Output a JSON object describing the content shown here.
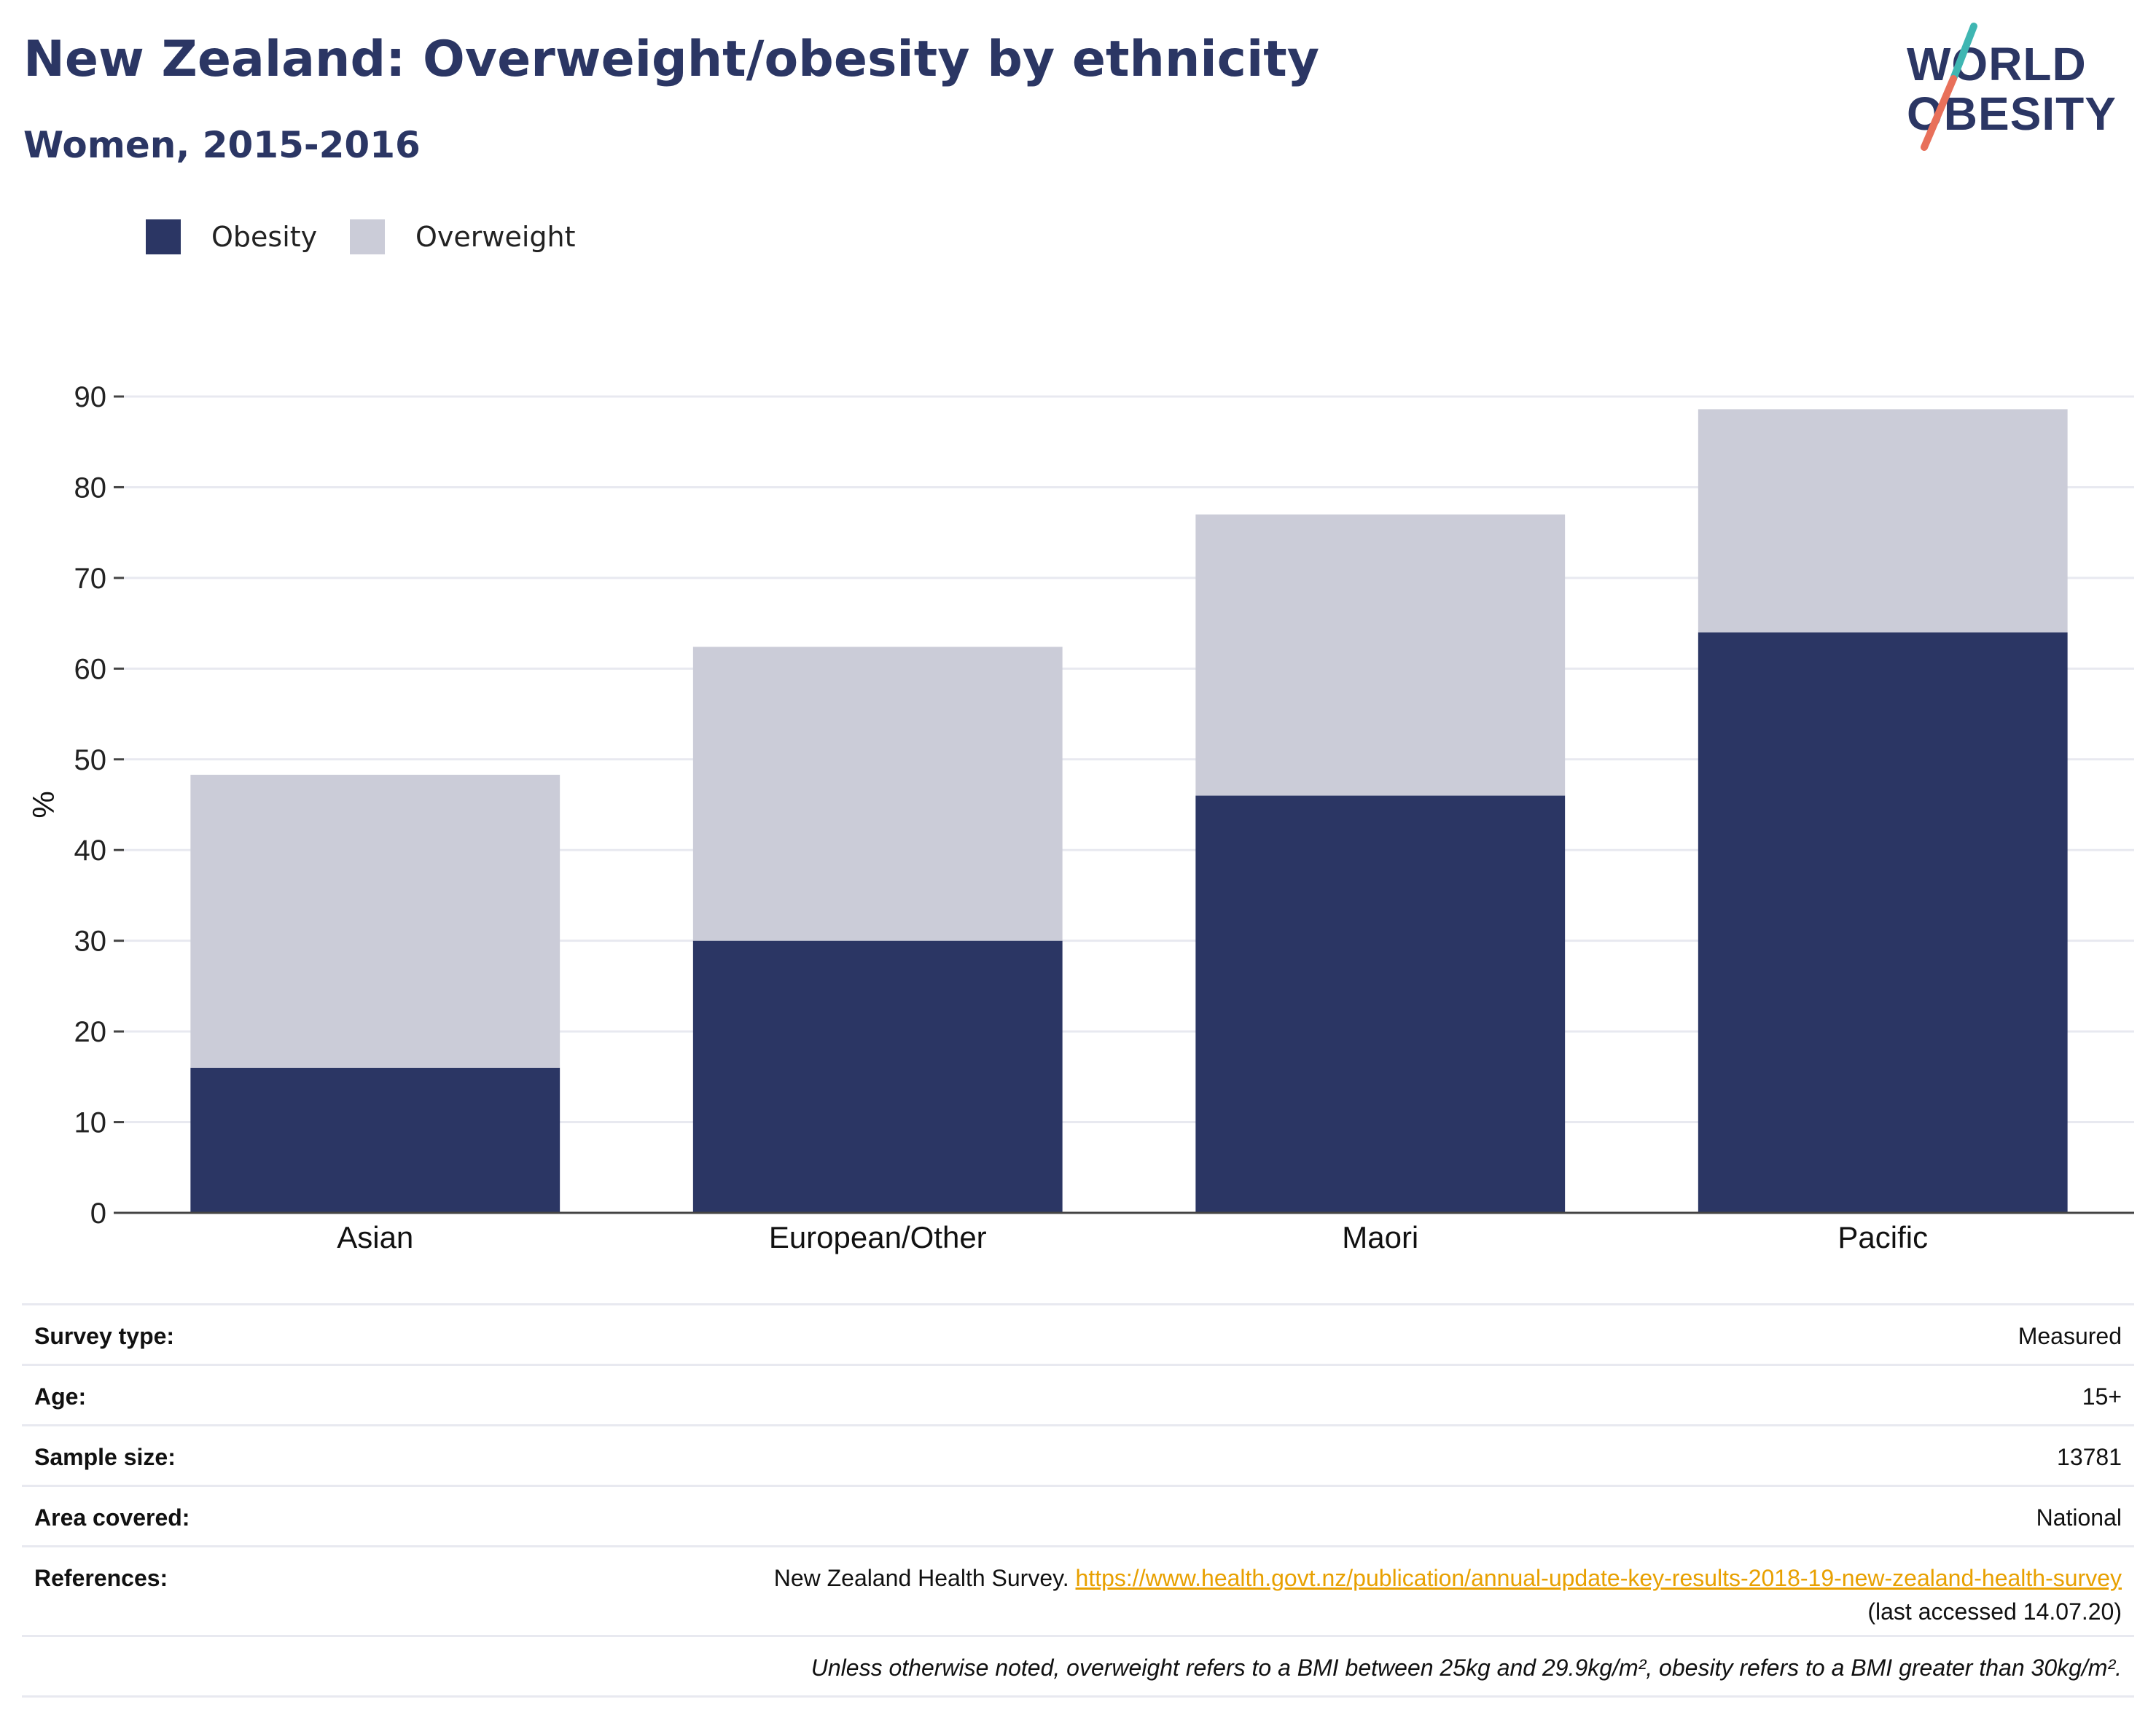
{
  "header": {
    "title": "New Zealand: Overweight/obesity by ethnicity",
    "subtitle": "Women, 2015-2016"
  },
  "logo": {
    "line1": "WORLD",
    "line2": "OBESITY",
    "accent_colors": [
      "#3fb6b2",
      "#e8705a"
    ]
  },
  "legend": [
    {
      "label": "Obesity",
      "color": "#2b3664"
    },
    {
      "label": "Overweight",
      "color": "#cbccd8"
    }
  ],
  "chart_data": {
    "type": "bar",
    "stacked": true,
    "categories": [
      "Asian",
      "European/Other",
      "Maori",
      "Pacific"
    ],
    "series": [
      {
        "name": "Obesity",
        "color": "#2b3664",
        "values": [
          16,
          30,
          46,
          64
        ]
      },
      {
        "name": "Overweight",
        "color": "#cbccd8",
        "values": [
          32.3,
          32.4,
          31,
          24.6
        ]
      }
    ],
    "totals": [
      48.3,
      62.4,
      77,
      88.6
    ],
    "ylabel": "%",
    "xlabel": "",
    "ylim": [
      0,
      90
    ],
    "yticks": [
      0,
      10,
      20,
      30,
      40,
      50,
      60,
      70,
      80,
      90
    ],
    "grid": true,
    "legend_position": "top-left"
  },
  "meta": {
    "survey_type": {
      "label": "Survey type:",
      "value": "Measured"
    },
    "age": {
      "label": "Age:",
      "value": "15+"
    },
    "sample_size": {
      "label": "Sample size:",
      "value": "13781"
    },
    "area": {
      "label": "Area covered:",
      "value": "National"
    },
    "references": {
      "label": "References:",
      "text": "New Zealand Health Survey.",
      "link": "https://www.health.govt.nz/publication/annual-update-key-results-2018-19-new-zealand-health-survey",
      "accessed": "(last accessed 14.07.20)"
    },
    "note": "Unless otherwise noted, overweight refers to a BMI between 25kg and 29.9kg/m², obesity refers to a BMI greater than 30kg/m²."
  }
}
